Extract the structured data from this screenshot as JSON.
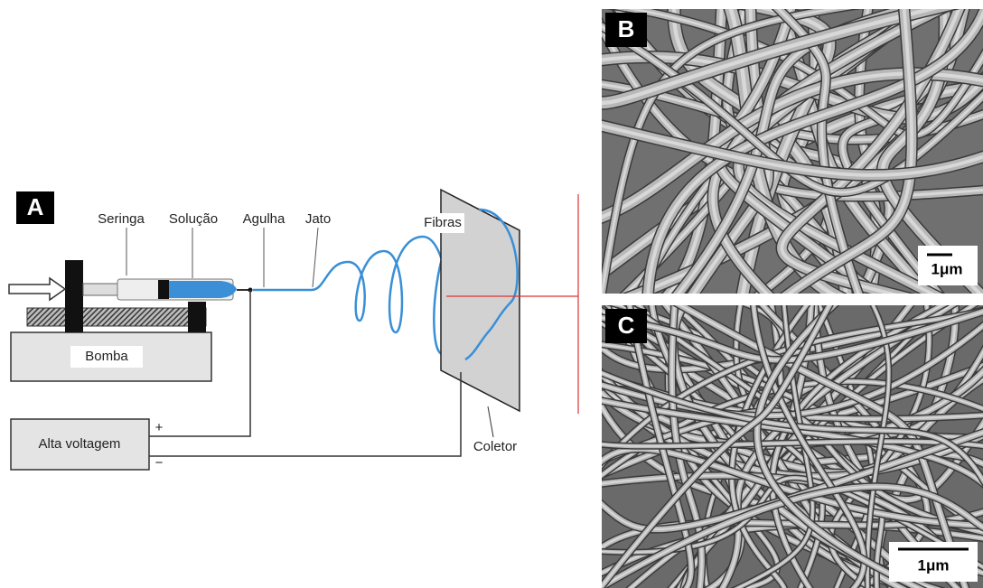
{
  "diagram": {
    "panel_label": "A",
    "syringe": "Seringa",
    "solution": "Solução",
    "needle": "Agulha",
    "jet": "Jato",
    "fibers": "Fibras",
    "pump": "Bomba",
    "power_supply": "Alta voltagem",
    "positive": "+",
    "negative": "−",
    "collector": "Coletor"
  },
  "images": [
    {
      "panel_label": "B",
      "scale_bar": "1μm"
    },
    {
      "panel_label": "C",
      "scale_bar": "1μm"
    }
  ]
}
